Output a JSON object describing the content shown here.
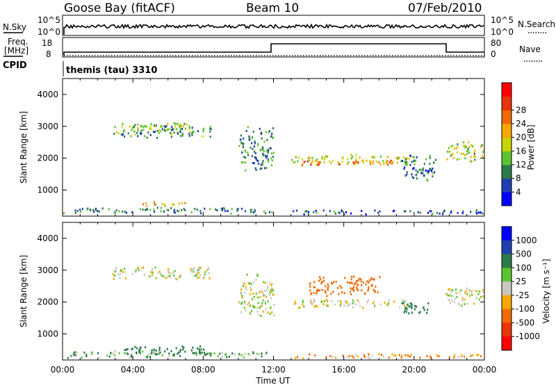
{
  "header": {
    "station": "Goose Bay (fitACF)",
    "beam": "Beam 10",
    "date": "07/Feb/2010"
  },
  "params": {
    "nsky_label": "N.Sky",
    "nsearch_label": "N.Search",
    "freq_label_1": "Freq.",
    "freq_label_2": "[MHz]",
    "nave_label": "Nave",
    "cpid_label": "CPID",
    "cpid_text": "themis (tau) 3310",
    "noise_ticks": [
      "10^5",
      "10^0"
    ],
    "freq_ticks": [
      "18",
      "8"
    ],
    "nave_ticks": [
      "80",
      "0"
    ]
  },
  "colors": {
    "power": [
      "#0000ff",
      "#1f3fb0",
      "#2e7a4a",
      "#5cc430",
      "#c8d400",
      "#f7a800",
      "#f06a00",
      "#e8340a",
      "#ff0000"
    ],
    "velocity": [
      "#0000ff",
      "#1f3fb0",
      "#2e7a4a",
      "#5cc430",
      "#c8c8be",
      "#f7a800",
      "#f06a00",
      "#e8340a",
      "#ff0000"
    ]
  },
  "chart_data": [
    {
      "type": "heatmap",
      "name": "power",
      "xlabel": "Time UT",
      "ylabel": "Slant Range [km]",
      "xlim": [
        0,
        24
      ],
      "ylim": [
        180,
        4500
      ],
      "x_ticks": [
        "00:00",
        "04:00",
        "08:00",
        "12:00",
        "16:00",
        "20:00",
        "00:00"
      ],
      "y_ticks": [
        1000,
        2000,
        3000,
        4000
      ],
      "colorbar": {
        "label": "Power [dB]",
        "ticks": [
          4,
          8,
          12,
          16,
          20,
          24,
          28
        ]
      },
      "regions": [
        {
          "t0": 2.8,
          "t1": 8.5,
          "r_center": 2850,
          "r_width": 500,
          "value": 10
        },
        {
          "t0": 4.0,
          "t1": 7.3,
          "r_center": 3000,
          "r_width": 260,
          "value": 14
        },
        {
          "t0": 13.0,
          "t1": 19.8,
          "r_center": 1950,
          "r_width": 320,
          "value": 16
        },
        {
          "t0": 13.5,
          "t1": 18.8,
          "r_center": 1850,
          "r_width": 180,
          "value": 22
        },
        {
          "t0": 10.0,
          "t1": 12.0,
          "r_center": 2300,
          "r_width": 1500,
          "value": 9
        },
        {
          "t0": 19.2,
          "t1": 21.2,
          "r_center": 1700,
          "r_width": 900,
          "value": 8
        },
        {
          "t0": 21.8,
          "t1": 24.0,
          "r_center": 2200,
          "r_width": 700,
          "value": 15
        },
        {
          "t0": 4.5,
          "t1": 7.0,
          "r_center": 550,
          "r_width": 160,
          "value": 18
        },
        {
          "t0": 0.0,
          "t1": 12.0,
          "r_center": 350,
          "r_width": 200,
          "value": 8
        },
        {
          "t0": 13.0,
          "t1": 24.0,
          "r_center": 300,
          "r_width": 150,
          "value": 6
        }
      ]
    },
    {
      "type": "heatmap",
      "name": "velocity",
      "xlabel": "Time UT",
      "ylabel": "Slant Range [km]",
      "xlim": [
        0,
        24
      ],
      "ylim": [
        180,
        4500
      ],
      "x_ticks": [
        "00:00",
        "04:00",
        "08:00",
        "12:00",
        "16:00",
        "20:00",
        "00:00"
      ],
      "y_ticks": [
        1000,
        2000,
        3000,
        4000
      ],
      "colorbar": {
        "label": "Velocity [m s⁻¹]",
        "ticks": [
          "1000",
          "500",
          "100",
          "25",
          "-25",
          "-100",
          "-500",
          "-1000"
        ]
      },
      "regions": [
        {
          "t0": 2.8,
          "t1": 8.5,
          "r_center": 2900,
          "r_width": 450,
          "value": 0
        },
        {
          "t0": 13.0,
          "t1": 19.8,
          "r_center": 1950,
          "r_width": 300,
          "value": 0
        },
        {
          "t0": 21.8,
          "t1": 24.0,
          "r_center": 2150,
          "r_width": 650,
          "value": 0
        },
        {
          "t0": 10.0,
          "t1": 12.0,
          "r_center": 2200,
          "r_width": 1400,
          "value": 0
        },
        {
          "t0": 19.2,
          "t1": 20.8,
          "r_center": 1800,
          "r_width": 500,
          "value": 200
        },
        {
          "t0": 14.0,
          "t1": 18.0,
          "r_center": 2500,
          "r_width": 700,
          "value": -200
        },
        {
          "t0": 3.5,
          "t1": 8.0,
          "r_center": 500,
          "r_width": 300,
          "value": 150
        },
        {
          "t0": 0.0,
          "t1": 12.0,
          "r_center": 350,
          "r_width": 220,
          "value": 60
        },
        {
          "t0": 13.0,
          "t1": 24.0,
          "r_center": 300,
          "r_width": 150,
          "value": -60
        }
      ]
    }
  ]
}
